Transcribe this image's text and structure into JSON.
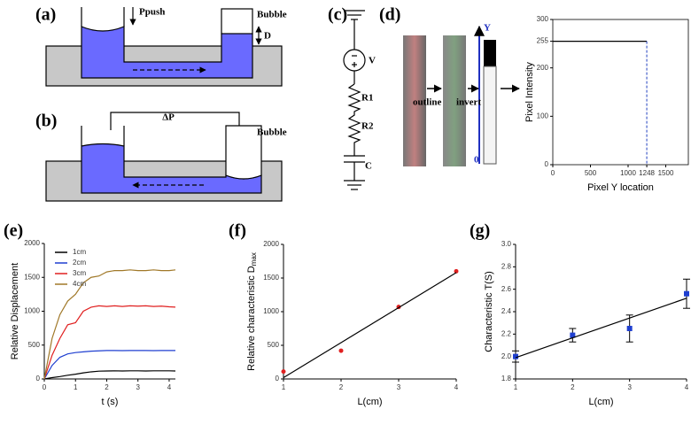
{
  "panels": [
    "(a)",
    "(b)",
    "(c)",
    "(d)",
    "(e)",
    "(f)",
    "(g)"
  ],
  "diagram_a": {
    "push_label": "Ppush",
    "bubble": "Bubble",
    "depth": "D"
  },
  "diagram_b": {
    "pressure": "ΔP",
    "bubble": "Bubble"
  },
  "circuit": {
    "source": "V",
    "r1": "R1",
    "r2": "R2",
    "capacitor": "C"
  },
  "image_steps": {
    "outline": "outline",
    "invert": "invert",
    "axis_top": "Y",
    "axis_bottom": "0"
  },
  "chart_data": [
    {
      "type": "line",
      "xlabel": "Pixel Y location",
      "ylabel": "Pixel Intensity",
      "frame": "box",
      "x": [
        0,
        1248
      ],
      "xlim": [
        0,
        1800
      ],
      "xticks": [
        0,
        500,
        1000,
        1248,
        1500
      ],
      "ylim": [
        0,
        300
      ],
      "yticks": [
        0,
        100,
        200,
        255,
        300
      ],
      "series": [
        {
          "color": "#000000",
          "values": [
            255,
            255
          ],
          "drop_line": "dashed",
          "drop_color": "#2040c0"
        }
      ]
    },
    {
      "type": "line",
      "xlabel": "t (s)",
      "ylabel": "Relative Displacement",
      "frame": "axes",
      "legend": "upper left",
      "x": [
        0,
        0.25,
        0.5,
        0.75,
        1,
        1.25,
        1.5,
        1.75,
        2,
        2.25,
        2.5,
        2.75,
        3,
        3.25,
        3.5,
        3.75,
        4,
        4.2
      ],
      "xlim": [
        0,
        4.2
      ],
      "xticks": [
        0,
        1,
        2,
        3,
        4
      ],
      "ylim": [
        0,
        2000
      ],
      "yticks": [
        0,
        500,
        1000,
        1500,
        2000
      ],
      "series": [
        {
          "name": "1cm",
          "color": "#000000",
          "values": [
            0,
            20,
            35,
            55,
            70,
            90,
            105,
            115,
            118,
            120,
            118,
            120,
            120,
            118,
            120,
            120,
            120,
            118
          ]
        },
        {
          "name": "2cm",
          "color": "#1f3fd0",
          "values": [
            0,
            200,
            320,
            370,
            390,
            400,
            410,
            415,
            420,
            420,
            418,
            420,
            420,
            420,
            418,
            420,
            420,
            420
          ]
        },
        {
          "name": "3cm",
          "color": "#e02020",
          "values": [
            0,
            350,
            600,
            800,
            830,
            1000,
            1060,
            1080,
            1070,
            1080,
            1070,
            1080,
            1075,
            1080,
            1070,
            1075,
            1065,
            1060
          ]
        },
        {
          "name": "4cm",
          "color": "#a07828",
          "values": [
            0,
            600,
            950,
            1150,
            1250,
            1420,
            1500,
            1520,
            1580,
            1600,
            1600,
            1610,
            1600,
            1600,
            1610,
            1600,
            1600,
            1610
          ]
        }
      ]
    },
    {
      "type": "scatter",
      "xlabel": "L(cm)",
      "ylabel": "Relative characteristic D",
      "ylabel_sub": "max",
      "frame": "axes",
      "x": [
        1,
        2,
        3,
        4
      ],
      "xlim": [
        1,
        4
      ],
      "xticks": [
        1,
        2,
        3,
        4
      ],
      "ylim": [
        0,
        2000
      ],
      "yticks": [
        0,
        500,
        1000,
        1500,
        2000
      ],
      "series": [
        {
          "color": "#e02020",
          "marker": "circle",
          "values": [
            110,
            420,
            1070,
            1600
          ]
        },
        {
          "color": "#000000",
          "x": [
            1,
            4
          ],
          "values": [
            20,
            1580
          ]
        }
      ]
    },
    {
      "type": "scatter",
      "xlabel": "L(cm)",
      "ylabel": "Characteristic T(S)",
      "frame": "axes",
      "x": [
        1,
        2,
        3,
        4
      ],
      "xlim": [
        1,
        4
      ],
      "xticks": [
        1,
        2,
        3,
        4
      ],
      "ylim": [
        1.8,
        3.0
      ],
      "yticks": [
        1.8,
        {
          "value": 2,
          "label": "2.0"
        },
        2.2,
        2.4,
        2.6,
        2.8,
        {
          "value": 3,
          "label": "3.0"
        }
      ],
      "series": [
        {
          "color": "#1f3fd0",
          "marker": "square",
          "values": [
            2.0,
            2.19,
            2.25,
            2.56
          ],
          "errors": [
            0.05,
            0.06,
            0.12,
            0.13
          ]
        },
        {
          "color": "#000000",
          "x": [
            1,
            4
          ],
          "values": [
            1.99,
            2.52
          ]
        }
      ]
    }
  ]
}
